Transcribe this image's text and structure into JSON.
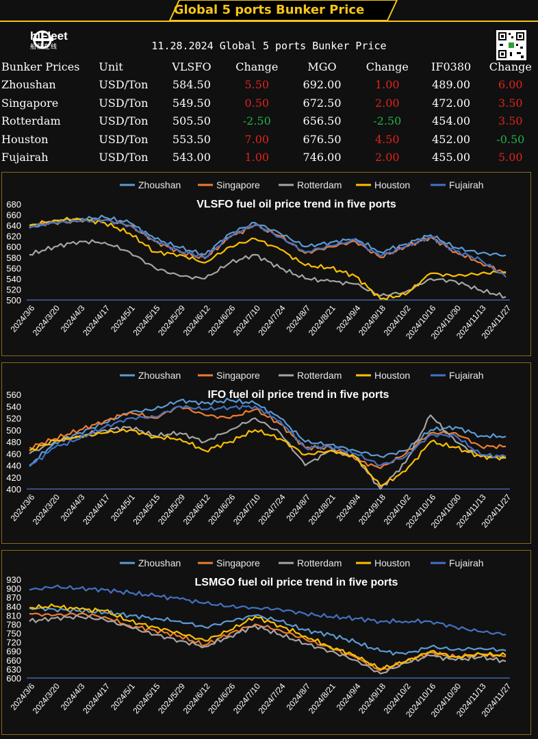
{
  "banner_title": "Global 5 ports  Bunker Price",
  "logo": {
    "name": "hiFleet",
    "sub": "船队在线"
  },
  "date_title": "11.28.2024 Global 5 ports  Bunker Price",
  "table": {
    "headers": [
      "Bunker Prices",
      "Unit",
      "VLSFO",
      "Change",
      "MGO",
      "Change",
      "IF0380",
      "Change"
    ],
    "rows": [
      {
        "port": "Zhoushan",
        "unit": "USD/Ton",
        "vlsfo": "584.50",
        "vlsfo_chg": "5.50",
        "mgo": "692.00",
        "mgo_chg": "1.00",
        "ifo": "489.00",
        "ifo_chg": "6.00"
      },
      {
        "port": "Singapore",
        "unit": "USD/Ton",
        "vlsfo": "549.50",
        "vlsfo_chg": "0.50",
        "mgo": "672.50",
        "mgo_chg": "2.00",
        "ifo": "472.00",
        "ifo_chg": "3.50"
      },
      {
        "port": "Rotterdam",
        "unit": "USD/Ton",
        "vlsfo": "505.50",
        "vlsfo_chg": "-2.50",
        "mgo": "656.50",
        "mgo_chg": "-2.50",
        "ifo": "454.00",
        "ifo_chg": "3.50"
      },
      {
        "port": "Houston",
        "unit": "USD/Ton",
        "vlsfo": "553.50",
        "vlsfo_chg": "7.00",
        "mgo": "676.50",
        "mgo_chg": "4.50",
        "ifo": "452.00",
        "ifo_chg": "-0.50"
      },
      {
        "port": "Fujairah",
        "unit": "USD/Ton",
        "vlsfo": "543.00",
        "vlsfo_chg": "1.00",
        "mgo": "746.00",
        "mgo_chg": "2.00",
        "ifo": "455.00",
        "ifo_chg": "5.00"
      }
    ],
    "colors": {
      "positive": "#e0231e",
      "negative": "#22b04b",
      "text": "#ffffff"
    }
  },
  "chart_data": [
    {
      "type": "line",
      "title": "VLSFO fuel oil price trend in five ports",
      "ylim": [
        500,
        680
      ],
      "yticks": [
        500,
        520,
        540,
        560,
        580,
        600,
        620,
        640,
        660,
        680
      ],
      "x": [
        "2024/3/6",
        "2024/3/20",
        "2024/4/3",
        "2024/4/17",
        "2024/5/1",
        "2024/5/15",
        "2024/5/29",
        "2024/6/12",
        "2024/6/26",
        "2024/7/10",
        "2024/7/24",
        "2024/8/7",
        "2024/8/21",
        "2024/9/4",
        "2024/9/18",
        "2024/10/2",
        "2024/10/16",
        "2024/10/30",
        "2024/11/13",
        "2024/11/27"
      ],
      "legend": "top",
      "series": [
        {
          "name": "Zhoushan",
          "color": "#5b9bd5",
          "values": [
            635,
            648,
            652,
            655,
            645,
            615,
            598,
            585,
            625,
            645,
            625,
            600,
            608,
            615,
            590,
            605,
            622,
            598,
            588,
            584
          ]
        },
        {
          "name": "Singapore",
          "color": "#ed7d31",
          "values": [
            640,
            645,
            648,
            650,
            640,
            610,
            590,
            578,
            618,
            640,
            620,
            588,
            600,
            610,
            580,
            600,
            618,
            590,
            570,
            550
          ]
        },
        {
          "name": "Rotterdam",
          "color": "#a5a5a5",
          "values": [
            585,
            600,
            610,
            608,
            590,
            560,
            545,
            540,
            570,
            585,
            560,
            540,
            535,
            530,
            508,
            515,
            540,
            535,
            518,
            506
          ]
        },
        {
          "name": "Houston",
          "color": "#ffc000",
          "values": [
            640,
            650,
            652,
            645,
            625,
            590,
            585,
            570,
            600,
            615,
            595,
            565,
            560,
            545,
            502,
            510,
            550,
            545,
            550,
            553
          ]
        },
        {
          "name": "Fujairah",
          "color": "#4472c4",
          "values": [
            638,
            645,
            648,
            650,
            640,
            612,
            592,
            580,
            620,
            642,
            618,
            590,
            602,
            612,
            582,
            600,
            618,
            592,
            575,
            543
          ]
        }
      ]
    },
    {
      "type": "line",
      "title": "IFO fuel oil price trend in five ports",
      "ylim": [
        400,
        560
      ],
      "yticks": [
        400,
        420,
        440,
        460,
        480,
        500,
        520,
        540,
        560
      ],
      "x": [
        "2024/3/6",
        "2024/3/20",
        "2024/4/3",
        "2024/4/17",
        "2024/5/1",
        "2024/5/15",
        "2024/5/29",
        "2024/6/12",
        "2024/6/26",
        "2024/7/10",
        "2024/7/24",
        "2024/8/7",
        "2024/8/21",
        "2024/9/4",
        "2024/9/18",
        "2024/10/2",
        "2024/10/16",
        "2024/10/30",
        "2024/11/13",
        "2024/11/27"
      ],
      "legend": "top",
      "series": [
        {
          "name": "Zhoushan",
          "color": "#5b9bd5",
          "values": [
            440,
            478,
            495,
            512,
            530,
            535,
            550,
            545,
            550,
            545,
            520,
            480,
            475,
            465,
            455,
            465,
            500,
            505,
            490,
            489
          ]
        },
        {
          "name": "Singapore",
          "color": "#ed7d31",
          "values": [
            470,
            485,
            500,
            515,
            530,
            520,
            540,
            525,
            520,
            535,
            510,
            470,
            470,
            450,
            435,
            460,
            495,
            495,
            472,
            472
          ]
        },
        {
          "name": "Rotterdam",
          "color": "#a5a5a5",
          "values": [
            460,
            480,
            490,
            500,
            505,
            490,
            495,
            480,
            500,
            520,
            495,
            440,
            465,
            455,
            400,
            445,
            525,
            480,
            455,
            454
          ]
        },
        {
          "name": "Houston",
          "color": "#ffc000",
          "values": [
            465,
            482,
            488,
            495,
            500,
            488,
            485,
            465,
            480,
            500,
            485,
            458,
            465,
            455,
            405,
            430,
            480,
            470,
            455,
            452
          ]
        },
        {
          "name": "Fujairah",
          "color": "#4472c4",
          "values": [
            438,
            470,
            485,
            505,
            520,
            522,
            540,
            535,
            538,
            540,
            515,
            470,
            472,
            460,
            440,
            455,
            492,
            490,
            458,
            455
          ]
        }
      ]
    },
    {
      "type": "line",
      "title": "LSMGO fuel oil price trend in five ports",
      "ylim": [
        600,
        930
      ],
      "yticks": [
        600,
        630,
        660,
        690,
        720,
        750,
        780,
        810,
        840,
        870,
        900,
        930
      ],
      "x": [
        "2024/3/6",
        "2024/3/20",
        "2024/4/3",
        "2024/4/17",
        "2024/5/1",
        "2024/5/15",
        "2024/5/29",
        "2024/6/12",
        "2024/6/26",
        "2024/7/10",
        "2024/7/24",
        "2024/8/7",
        "2024/8/21",
        "2024/9/4",
        "2024/9/18",
        "2024/10/2",
        "2024/10/16",
        "2024/10/30",
        "2024/11/13",
        "2024/11/27"
      ],
      "legend": "top",
      "series": [
        {
          "name": "Zhoushan",
          "color": "#5b9bd5",
          "values": [
            835,
            830,
            825,
            820,
            810,
            800,
            790,
            770,
            790,
            810,
            790,
            760,
            745,
            720,
            690,
            680,
            705,
            695,
            700,
            692
          ]
        },
        {
          "name": "Singapore",
          "color": "#ed7d31",
          "values": [
            815,
            810,
            815,
            805,
            775,
            760,
            740,
            710,
            750,
            780,
            760,
            730,
            700,
            670,
            625,
            655,
            685,
            670,
            680,
            672
          ]
        },
        {
          "name": "Rotterdam",
          "color": "#a5a5a5",
          "values": [
            790,
            800,
            805,
            795,
            770,
            745,
            725,
            705,
            740,
            775,
            745,
            715,
            690,
            660,
            615,
            650,
            675,
            660,
            670,
            656
          ]
        },
        {
          "name": "Houston",
          "color": "#ffc000",
          "values": [
            835,
            840,
            830,
            825,
            790,
            770,
            750,
            725,
            760,
            805,
            775,
            740,
            705,
            675,
            630,
            655,
            690,
            670,
            680,
            676
          ]
        },
        {
          "name": "Fujairah",
          "color": "#4472c4",
          "values": [
            895,
            905,
            900,
            895,
            885,
            875,
            865,
            850,
            840,
            835,
            830,
            815,
            805,
            800,
            790,
            790,
            790,
            770,
            755,
            746
          ]
        }
      ]
    }
  ]
}
